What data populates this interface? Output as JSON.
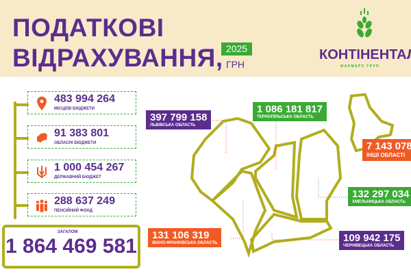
{
  "header": {
    "title_line1": "ПОДАТКОВІ",
    "title_line2": "ВІДРАХУВАННЯ,",
    "year": "2025",
    "currency": "ГРН"
  },
  "logo": {
    "name": "КОНТІНЕНТАЛ",
    "subtitle": "ФАРМЕРЗ ГРУП"
  },
  "budgets": [
    {
      "value": "483 994 264",
      "label": "МІСЦЕВІ БЮДЖЕТИ",
      "icon": "location-pin-icon"
    },
    {
      "value": "91 383 801",
      "label": "ОБЛАСНІ БЮДЖЕТИ",
      "icon": "region-map-icon"
    },
    {
      "value": "1 000 454 267",
      "label": "ДЕРЖАВНИЙ БЮДЖЕТ",
      "icon": "trident-icon"
    },
    {
      "value": "288 637 249",
      "label": "ПЕНСІЙНИЙ ФОНД",
      "icon": "people-icon"
    }
  ],
  "total": {
    "label": "ЗАГАЛОМ",
    "value": "1 864 469 581"
  },
  "regions": [
    {
      "value": "397 799 158",
      "label": "ЛЬВІВСЬКА ОБЛАСТЬ",
      "color": "#5b2d8e"
    },
    {
      "value": "1 086 181 817",
      "label": "ТЕРНОПІЛЬСЬКА ОБЛАСТЬ",
      "color": "#3aaa35"
    },
    {
      "value": "7 143 078",
      "label": "ІНШІ ОБЛАСТІ",
      "color": "#f15a24"
    },
    {
      "value": "132 297 034",
      "label": "ХМЕЛЬНИЦЬКА ОБЛАСТЬ",
      "color": "#3aaa35"
    },
    {
      "value": "131 106 319",
      "label": "ІВАНО-ФРАНКІВСЬКА ОБЛАСТЬ",
      "color": "#f15a24"
    },
    {
      "value": "109 942 175",
      "label": "ЧЕРНІВЕЦЬКА ОБЛАСТЬ",
      "color": "#5b2d8e"
    }
  ],
  "colors": {
    "purple": "#5b2d8e",
    "green": "#3aaa35",
    "orange": "#f15a24",
    "seed": "#b1ad1e",
    "header_bg": "#f8eac9"
  }
}
